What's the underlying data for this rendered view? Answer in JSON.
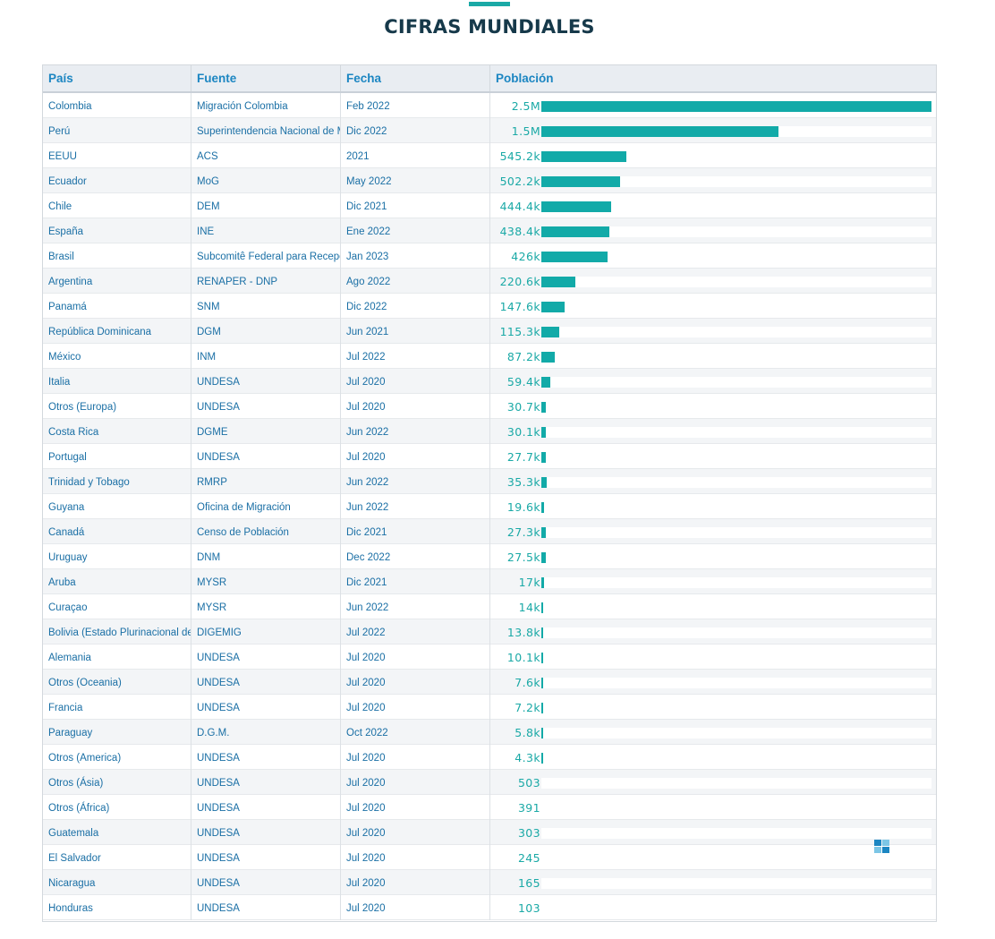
{
  "page": {
    "title": "CIFRAS MUNDIALES"
  },
  "colors": {
    "accent": "#1aa9a6",
    "bar": "#12aaa8",
    "header_text": "#1c86c2",
    "title": "#16394a"
  },
  "table": {
    "headers": {
      "pais": "País",
      "fuente": "Fuente",
      "fecha": "Fecha",
      "poblacion": "Población"
    }
  },
  "chart_data": {
    "type": "bar",
    "orientation": "horizontal",
    "title": "CIFRAS MUNDIALES",
    "value_column": "Población",
    "xlim": [
      0,
      2500000
    ],
    "rows": [
      {
        "pais": "Colombia",
        "fuente": "Migración Colombia",
        "fecha": "Feb 2022",
        "label": "2.5M",
        "value": 2500000
      },
      {
        "pais": "Perú",
        "fuente": "Superintendencia Nacional de M",
        "fecha": "Dic 2022",
        "label": "1.5M",
        "value": 1520000
      },
      {
        "pais": "EEUU",
        "fuente": "ACS",
        "fecha": "2021",
        "label": "545.2k",
        "value": 545200
      },
      {
        "pais": "Ecuador",
        "fuente": "MoG",
        "fecha": "May 2022",
        "label": "502.2k",
        "value": 502200
      },
      {
        "pais": "Chile",
        "fuente": "DEM",
        "fecha": "Dic 2021",
        "label": "444.4k",
        "value": 444400
      },
      {
        "pais": "España",
        "fuente": "INE",
        "fecha": "Ene 2022",
        "label": "438.4k",
        "value": 438400
      },
      {
        "pais": "Brasil",
        "fuente": "Subcomitê Federal para Recepçã",
        "fecha": "Jan 2023",
        "label": "426k",
        "value": 426000
      },
      {
        "pais": "Argentina",
        "fuente": "RENAPER - DNP",
        "fecha": "Ago 2022",
        "label": "220.6k",
        "value": 220600
      },
      {
        "pais": "Panamá",
        "fuente": "SNM",
        "fecha": "Dic 2022",
        "label": "147.6k",
        "value": 147600
      },
      {
        "pais": "República Dominicana",
        "fuente": "DGM",
        "fecha": "Jun 2021",
        "label": "115.3k",
        "value": 115300
      },
      {
        "pais": "México",
        "fuente": "INM",
        "fecha": "Jul 2022",
        "label": "87.2k",
        "value": 87200
      },
      {
        "pais": "Italia",
        "fuente": "UNDESA",
        "fecha": "Jul 2020",
        "label": "59.4k",
        "value": 59400
      },
      {
        "pais": "Otros (Europa)",
        "fuente": "UNDESA",
        "fecha": "Jul 2020",
        "label": "30.7k",
        "value": 30700
      },
      {
        "pais": "Costa Rica",
        "fuente": "DGME",
        "fecha": "Jun 2022",
        "label": "30.1k",
        "value": 30100
      },
      {
        "pais": "Portugal",
        "fuente": "UNDESA",
        "fecha": "Jul 2020",
        "label": "27.7k",
        "value": 27700
      },
      {
        "pais": "Trinidad y Tobago",
        "fuente": "RMRP",
        "fecha": "Jun 2022",
        "label": "35.3k",
        "value": 35300
      },
      {
        "pais": "Guyana",
        "fuente": "Oficina de Migración",
        "fecha": "Jun 2022",
        "label": "19.6k",
        "value": 19600
      },
      {
        "pais": "Canadá",
        "fuente": "Censo de Población",
        "fecha": "Dic 2021",
        "label": "27.3k",
        "value": 27300
      },
      {
        "pais": "Uruguay",
        "fuente": "DNM",
        "fecha": "Dec 2022",
        "label": "27.5k",
        "value": 27500
      },
      {
        "pais": "Aruba",
        "fuente": "MYSR",
        "fecha": "Dic 2021",
        "label": "17k",
        "value": 17000
      },
      {
        "pais": "Curaçao",
        "fuente": "MYSR",
        "fecha": "Jun 2022",
        "label": "14k",
        "value": 14000
      },
      {
        "pais": "Bolivia (Estado Plurinacional de)",
        "fuente": "DIGEMIG",
        "fecha": "Jul 2022",
        "label": "13.8k",
        "value": 13800
      },
      {
        "pais": "Alemania",
        "fuente": "UNDESA",
        "fecha": "Jul 2020",
        "label": "10.1k",
        "value": 10100
      },
      {
        "pais": "Otros (Oceania)",
        "fuente": "UNDESA",
        "fecha": "Jul 2020",
        "label": "7.6k",
        "value": 7600
      },
      {
        "pais": "Francia",
        "fuente": "UNDESA",
        "fecha": "Jul 2020",
        "label": "7.2k",
        "value": 7200
      },
      {
        "pais": "Paraguay",
        "fuente": "D.G.M.",
        "fecha": "Oct 2022",
        "label": "5.8k",
        "value": 5800
      },
      {
        "pais": "Otros (America)",
        "fuente": "UNDESA",
        "fecha": "Jul 2020",
        "label": "4.3k",
        "value": 4300
      },
      {
        "pais": "Otros (Ásia)",
        "fuente": "UNDESA",
        "fecha": "Jul 2020",
        "label": "503",
        "value": 503
      },
      {
        "pais": "Otros (África)",
        "fuente": "UNDESA",
        "fecha": "Jul 2020",
        "label": "391",
        "value": 391
      },
      {
        "pais": "Guatemala",
        "fuente": "UNDESA",
        "fecha": "Jul 2020",
        "label": "303",
        "value": 303
      },
      {
        "pais": "El Salvador",
        "fuente": "UNDESA",
        "fecha": "Jul 2020",
        "label": "245",
        "value": 245
      },
      {
        "pais": "Nicaragua",
        "fuente": "UNDESA",
        "fecha": "Jul 2020",
        "label": "165",
        "value": 165
      },
      {
        "pais": "Honduras",
        "fuente": "UNDESA",
        "fecha": "Jul 2020",
        "label": "103",
        "value": 103
      }
    ]
  },
  "icons": {
    "corner": "grid-logo-icon"
  }
}
